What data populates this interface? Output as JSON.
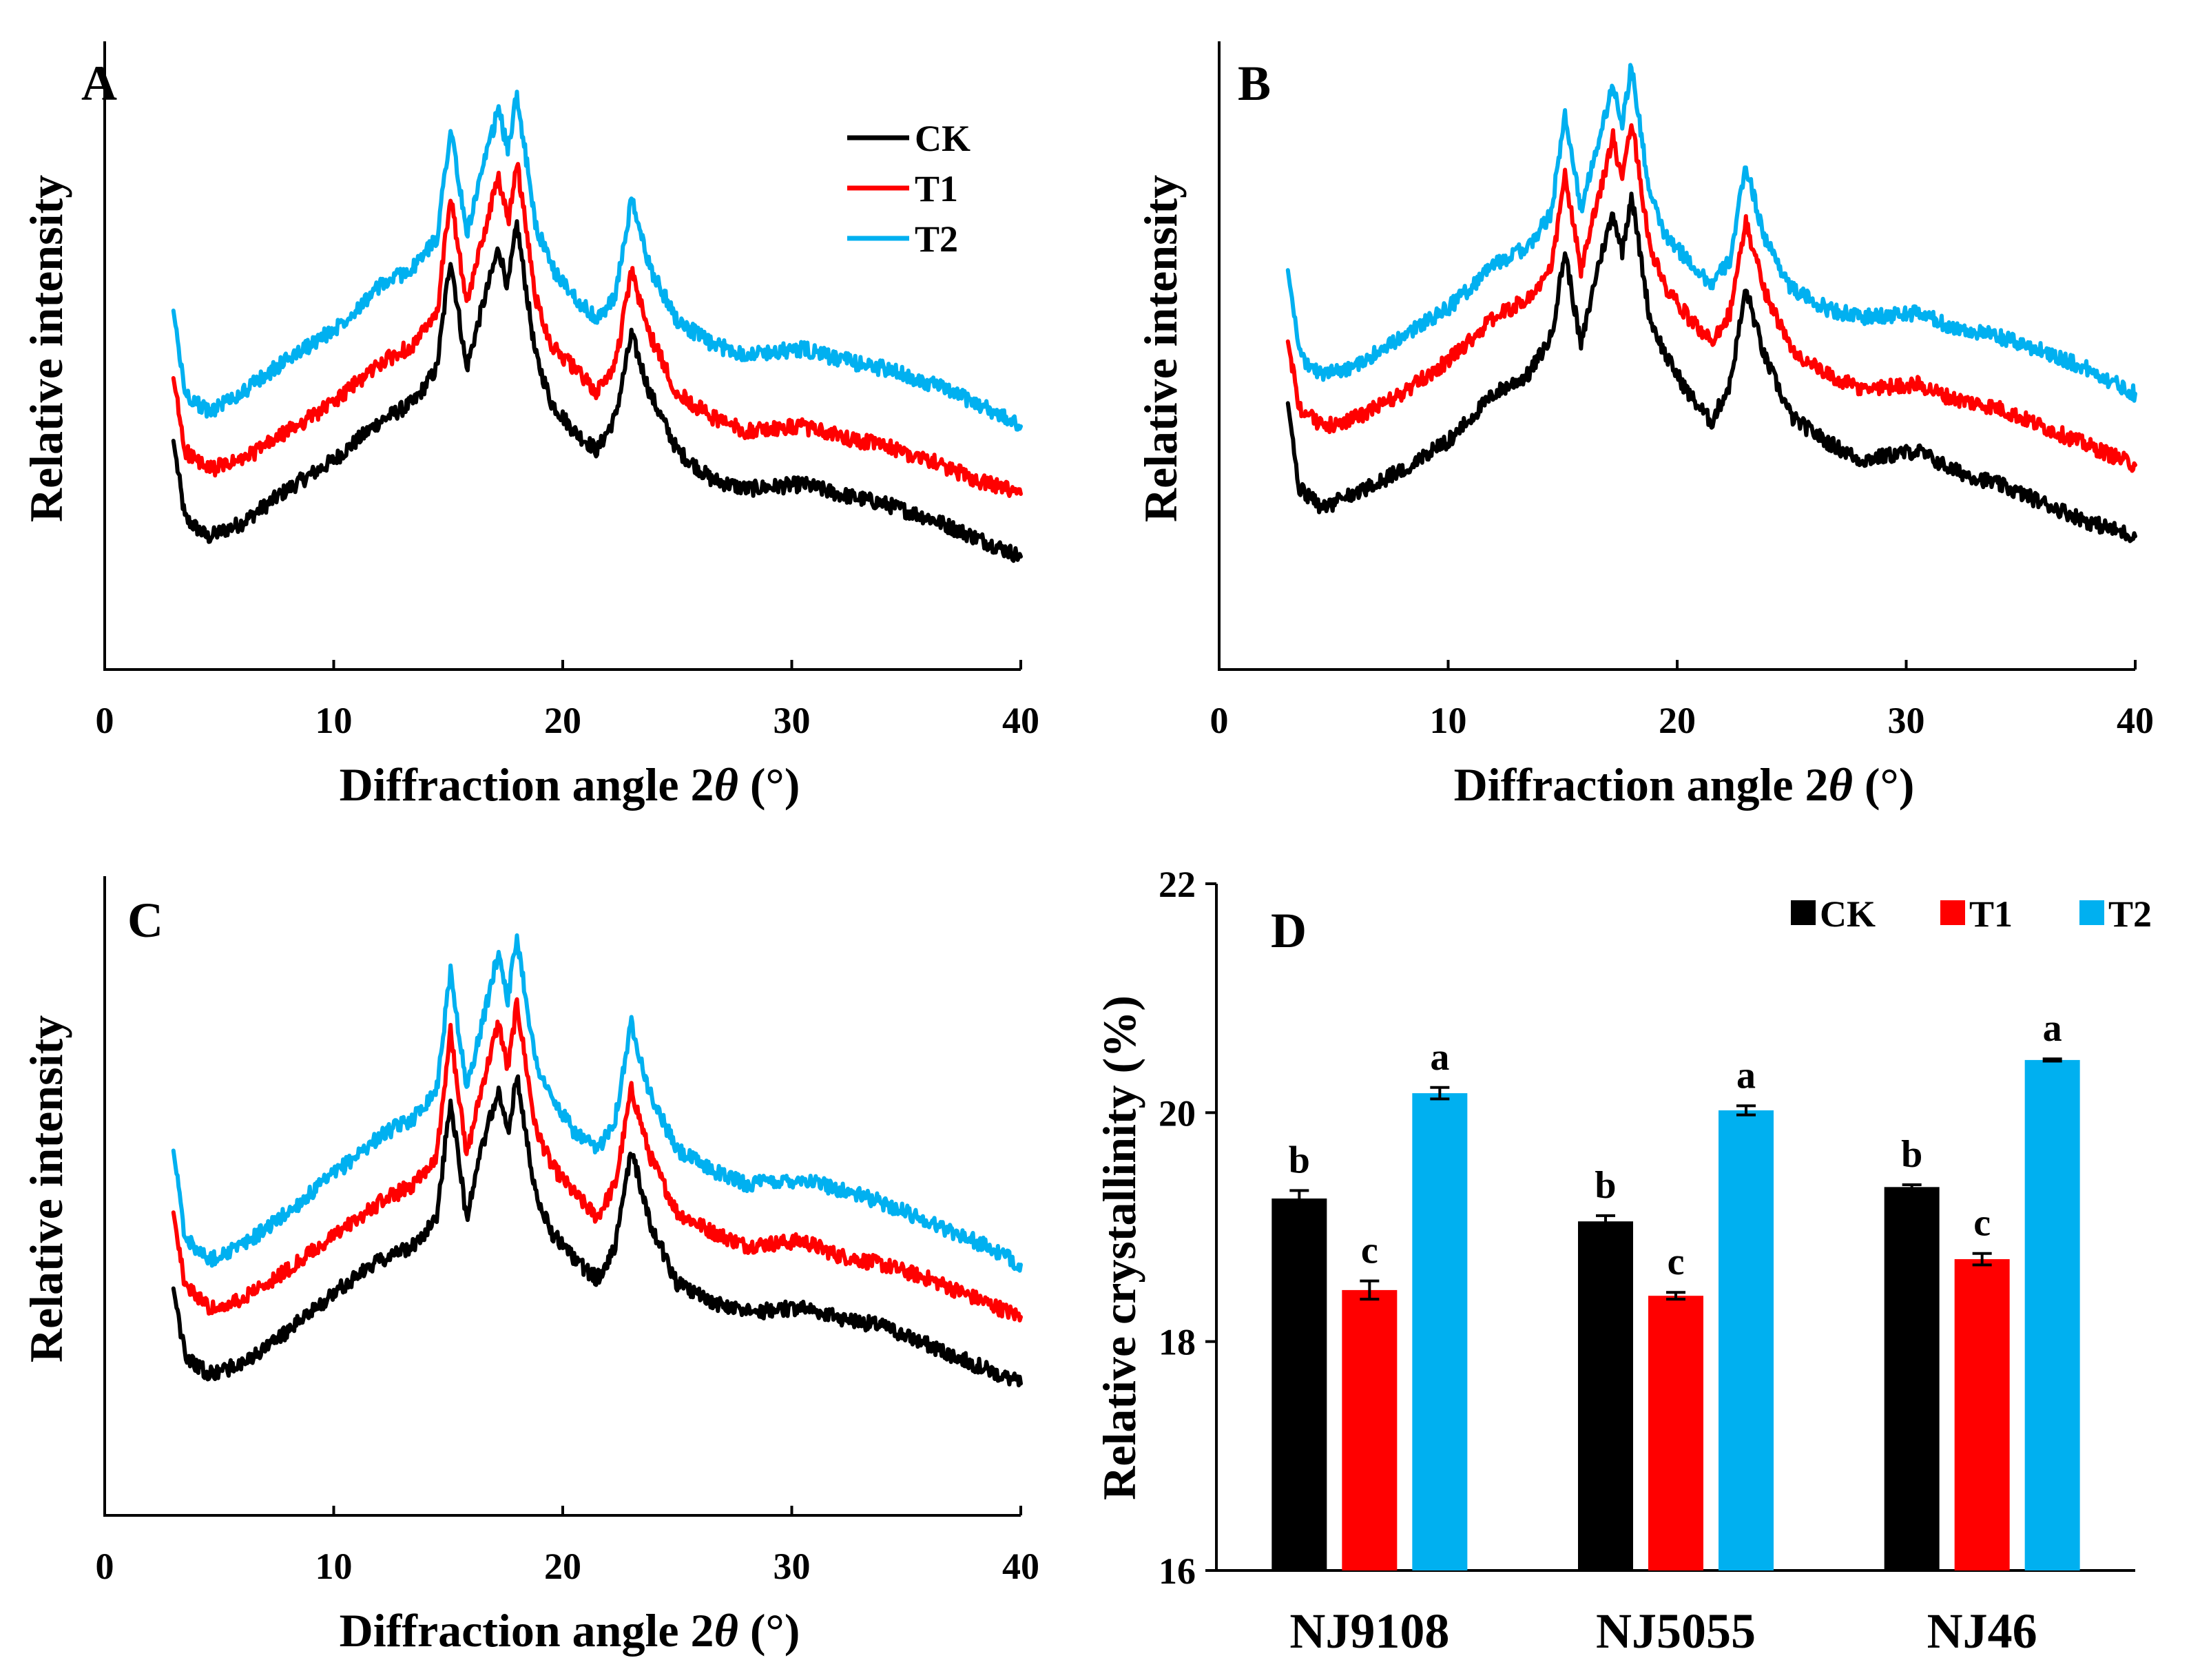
{
  "colors": {
    "CK": "#000000",
    "T1": "#ff0000",
    "T2": "#00b0f0"
  },
  "chart_data": [
    {
      "panel": "A",
      "type": "line",
      "title": "",
      "xlabel": "Diffraction angle 2θ (°)",
      "xlabel_parts": {
        "prefix": "Diffraction angle 2",
        "symbol": "θ",
        "suffix": " (°)"
      },
      "ylabel": "Relative intensity",
      "xlim": [
        0,
        40
      ],
      "xticks": [
        0,
        10,
        20,
        30,
        40
      ],
      "ylim": [
        0,
        100
      ],
      "legend": {
        "position": "top-right",
        "entries": [
          "CK",
          "T1",
          "T2"
        ]
      },
      "x": [
        3,
        3.5,
        4.5,
        6,
        8,
        10,
        12,
        13.5,
        14.5,
        15.1,
        15.8,
        16.5,
        17.2,
        17.6,
        18.0,
        18.8,
        19.5,
        20.5,
        21.5,
        22.3,
        23.0,
        23.8,
        25,
        26.5,
        28,
        30.5,
        32,
        34,
        36,
        38,
        40
      ],
      "series": [
        {
          "name": "CK",
          "values": [
            30,
            14,
            10,
            13,
            20,
            26,
            34,
            38,
            45,
            68,
            45,
            58,
            70,
            62,
            75,
            48,
            38,
            32,
            28,
            35,
            52,
            40,
            28,
            22,
            20,
            21,
            19,
            17,
            14,
            10,
            6
          ]
        },
        {
          "name": "T1",
          "values": [
            43,
            28,
            24,
            26,
            32,
            38,
            46,
            50,
            56,
            81,
            58,
            72,
            85,
            75,
            88,
            60,
            50,
            45,
            40,
            46,
            65,
            52,
            40,
            35,
            32,
            33,
            31,
            29,
            26,
            22,
            19
          ]
        },
        {
          "name": "T2",
          "values": [
            57,
            40,
            36,
            40,
            47,
            53,
            62,
            66,
            72,
            95,
            73,
            86,
            99,
            90,
            102,
            75,
            66,
            60,
            55,
            60,
            80,
            66,
            55,
            50,
            48,
            49,
            47,
            45,
            42,
            38,
            33
          ]
        }
      ]
    },
    {
      "panel": "B",
      "type": "line",
      "title": "",
      "xlabel": "Diffraction angle 2θ (°)",
      "xlabel_parts": {
        "prefix": "Diffraction angle 2",
        "symbol": "θ",
        "suffix": " (°)"
      },
      "ylabel": "Relative intensity",
      "xlim": [
        0,
        40
      ],
      "xticks": [
        0,
        10,
        20,
        30,
        40
      ],
      "ylim": [
        0,
        100
      ],
      "x": [
        3,
        3.5,
        4.5,
        6,
        8,
        10,
        12,
        13.5,
        14.5,
        15.1,
        15.8,
        16.5,
        17.2,
        17.6,
        18.0,
        18.8,
        19.5,
        20.5,
        21.5,
        22.3,
        23.0,
        23.8,
        25,
        26.5,
        28,
        30.5,
        32,
        34,
        36,
        38,
        40
      ],
      "series": [
        {
          "name": "CK",
          "values": [
            34,
            16,
            12,
            15,
            20,
            26,
            36,
            40,
            48,
            66,
            46,
            62,
            74,
            66,
            78,
            52,
            44,
            36,
            30,
            38,
            58,
            44,
            31,
            26,
            22,
            24,
            20,
            17,
            13,
            9,
            6
          ]
        },
        {
          "name": "T1",
          "values": [
            47,
            33,
            29,
            31,
            36,
            43,
            52,
            56,
            62,
            82,
            62,
            76,
            90,
            80,
            94,
            67,
            58,
            52,
            47,
            53,
            72,
            58,
            45,
            40,
            37,
            38,
            35,
            33,
            29,
            25,
            21
          ]
        },
        {
          "name": "T2",
          "values": [
            62,
            44,
            40,
            42,
            48,
            54,
            63,
            67,
            74,
            95,
            75,
            88,
            101,
            93,
            105,
            78,
            69,
            64,
            59,
            64,
            84,
            69,
            58,
            54,
            52,
            53,
            50,
            48,
            45,
            41,
            36
          ]
        }
      ]
    },
    {
      "panel": "C",
      "type": "line",
      "title": "",
      "xlabel": "Diffraction angle 2θ (°)",
      "xlabel_parts": {
        "prefix": "Diffraction angle 2",
        "symbol": "θ",
        "suffix": " (°)"
      },
      "ylabel": "Relative intensity",
      "xlim": [
        0,
        40
      ],
      "xticks": [
        0,
        10,
        20,
        30,
        40
      ],
      "ylim": [
        0,
        100
      ],
      "x": [
        3,
        3.5,
        4.5,
        6,
        8,
        10,
        12,
        13.5,
        14.5,
        15.1,
        15.8,
        16.5,
        17.2,
        17.6,
        18.0,
        18.8,
        19.5,
        20.5,
        21.5,
        22.3,
        23.0,
        23.8,
        25,
        26.5,
        28,
        30.5,
        32,
        34,
        36,
        38,
        40
      ],
      "series": [
        {
          "name": "CK",
          "values": [
            26,
            12,
            8,
            10,
            17,
            25,
            32,
            35,
            41,
            66,
            41,
            56,
            68,
            58,
            71,
            46,
            38,
            32,
            28,
            35,
            55,
            40,
            27,
            23,
            21,
            22,
            20,
            18,
            14,
            10,
            6
          ]
        },
        {
          "name": "T1",
          "values": [
            42,
            27,
            22,
            24,
            30,
            37,
            44,
            48,
            54,
            80,
            54,
            69,
            82,
            72,
            86,
            60,
            52,
            46,
            41,
            48,
            68,
            54,
            42,
            38,
            35,
            36,
            33,
            31,
            28,
            24,
            20
          ]
        },
        {
          "name": "T2",
          "values": [
            55,
            37,
            32,
            35,
            42,
            50,
            58,
            62,
            68,
            93,
            68,
            82,
            97,
            87,
            100,
            74,
            66,
            59,
            55,
            62,
            82,
            67,
            55,
            51,
            48,
            49,
            47,
            44,
            40,
            36,
            31
          ]
        }
      ]
    },
    {
      "panel": "D",
      "type": "bar",
      "title": "",
      "xlabel": "",
      "ylabel": "Relative crystallinity (%)",
      "categories": [
        "NJ9108",
        "NJ5055",
        "NJ46"
      ],
      "ylim": [
        16,
        22
      ],
      "yticks": [
        16,
        18,
        20,
        22
      ],
      "legend": {
        "position": "top-right",
        "entries": [
          "CK",
          "T1",
          "T2"
        ]
      },
      "series": [
        {
          "name": "CK",
          "values": [
            19.25,
            19.05,
            19.35
          ],
          "errors": [
            0.07,
            0.05,
            0.02
          ],
          "letters": [
            "b",
            "b",
            "b"
          ]
        },
        {
          "name": "T1",
          "values": [
            18.45,
            18.4,
            18.72
          ],
          "errors": [
            0.08,
            0.03,
            0.05
          ],
          "letters": [
            "c",
            "c",
            "c"
          ]
        },
        {
          "name": "T2",
          "values": [
            20.17,
            20.02,
            20.46
          ],
          "errors": [
            0.05,
            0.04,
            0.01
          ],
          "letters": [
            "a",
            "a",
            "a"
          ]
        }
      ]
    }
  ]
}
